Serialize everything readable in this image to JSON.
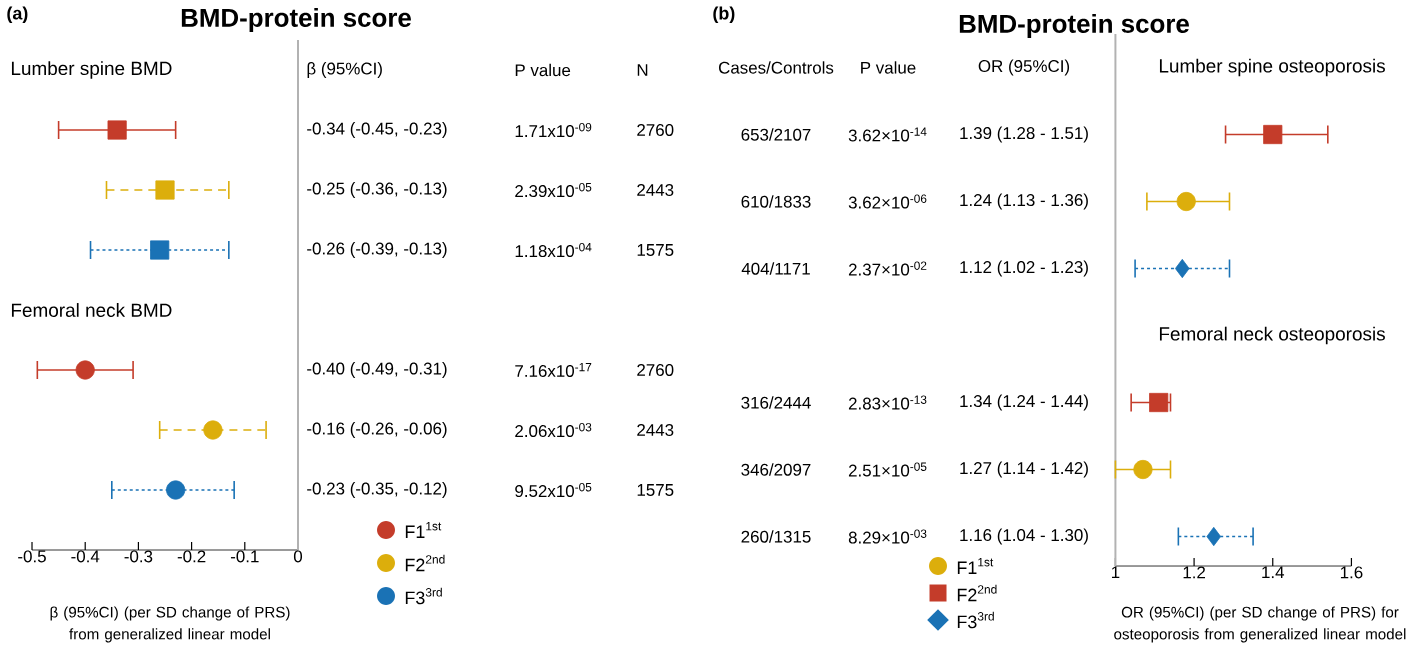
{
  "chart_data": [
    {
      "type": "scatter",
      "orientation": "horizontal",
      "title": "BMD-protein score",
      "xlabel": "β (95%CI) (per SD change of PRS) from generalized linear model",
      "categories": [
        "Lumber spine BMD",
        null,
        null,
        null,
        "Femoral neck BMD",
        null,
        null,
        null
      ],
      "xlim": [
        -0.5,
        0
      ],
      "xticks": [
        -0.5,
        -0.4,
        -0.3,
        -0.2,
        -0.1,
        0
      ],
      "legend": "bottom",
      "annotations": [
        "(a)",
        "β (95%CI)",
        "P value",
        "N",
        "-0.34 (-0.45, -0.23)",
        "1.71x10$^{-09}$",
        "2760",
        "-0.25 (-0.36, -0.13)",
        "2.39x10$^{-05}$",
        "2443",
        "-0.26 (-0.39, -0.13)",
        "1.18x10$^{-04}$",
        "1575",
        "-0.40 (-0.49, -0.31)",
        "7.16x10$^{-17}$",
        "2760",
        "-0.16 (-0.26, -0.06)",
        "2.06x10$^{-03}$",
        "2443",
        "-0.23 (-0.35, -0.12)",
        "9.52x10$^{-05}$",
        "1575"
      ],
      "series": [
        {
          "name": "F1$^{1st}$",
          "color": "#c43c2a",
          "marker": "circle",
          "line_style": "solid",
          "values": [
            null,
            null,
            null,
            null,
            null,
            -0.4,
            null,
            null
          ],
          "errors": [
            null,
            null,
            null,
            null,
            null,
            [
              -0.49,
              -0.31
            ],
            null,
            null
          ]
        },
        {
          "name": "F2$^{2nd}$",
          "color": "#dcae0c",
          "marker": "circle",
          "line_style": "dashed",
          "values": [
            null,
            null,
            null,
            null,
            null,
            null,
            -0.16,
            null
          ],
          "errors": [
            null,
            null,
            null,
            null,
            null,
            null,
            [
              -0.26,
              -0.06
            ],
            null
          ]
        },
        {
          "name": "F3$^{3rd}$",
          "color": "#1a72b5",
          "marker": "circle",
          "line_style": "dotted",
          "values": [
            null,
            null,
            null,
            null,
            null,
            null,
            null,
            -0.23
          ],
          "errors": [
            null,
            null,
            null,
            null,
            null,
            null,
            null,
            [
              -0.35,
              -0.12
            ]
          ]
        },
        {
          "color": "#c43c2a",
          "marker": "square",
          "line_style": "solid",
          "values": [
            null,
            -0.34,
            null,
            null,
            null,
            null,
            null,
            null
          ],
          "errors": [
            null,
            [
              -0.45,
              -0.23
            ],
            null,
            null,
            null,
            null,
            null,
            null
          ]
        },
        {
          "color": "#dcae0c",
          "marker": "square",
          "line_style": "dashed",
          "values": [
            null,
            null,
            -0.25,
            null,
            null,
            null,
            null,
            null
          ],
          "errors": [
            null,
            null,
            [
              -0.36,
              -0.13
            ],
            null,
            null,
            null,
            null,
            null
          ]
        },
        {
          "color": "#1a72b5",
          "marker": "square",
          "line_style": "dotted",
          "values": [
            null,
            null,
            null,
            -0.26,
            null,
            null,
            null,
            null
          ],
          "errors": [
            null,
            null,
            null,
            [
              -0.39,
              -0.13
            ],
            null,
            null,
            null,
            null
          ]
        }
      ]
    },
    {
      "type": "scatter",
      "orientation": "horizontal",
      "title": "BMD-protein score",
      "xlabel": "OR (95%CI) (per SD change of PRS) for osteoporosis from generalized linear model",
      "categories": [
        "Lumber spine osteoporosis",
        null,
        null,
        null,
        "Femoral neck osteoporosis",
        null,
        null,
        null
      ],
      "xlim": [
        1,
        1.6
      ],
      "xticks": [
        1,
        1.2,
        1.4,
        1.6
      ],
      "legend": "bottom",
      "annotations": [
        "(b)",
        "Cases/Controls",
        "P value",
        "OR (95%CI)",
        "653/2107",
        "3.62×10$^{-14}$",
        "1.39 (1.28 - 1.51)",
        "610/1833",
        "3.62×10$^{-06}$",
        "1.24 (1.13 - 1.36)",
        "404/1171",
        "2.37×10$^{-02}$",
        "1.12 (1.02 - 1.23)",
        "316/2444",
        "2.83×10$^{-13}$",
        "1.34 (1.24 - 1.44)",
        "346/2097",
        "2.51×10$^{-05}$",
        "1.27 (1.14 - 1.42)",
        "260/1315",
        "8.29×10$^{-03}$",
        "1.16 (1.04 - 1.30)"
      ],
      "series": [
        {
          "name": "F1$^{1st}$",
          "color": "#dcae0c",
          "marker": "circle",
          "line_style": "solid",
          "values": [
            null,
            null,
            1.18,
            null,
            null,
            null,
            1.07,
            null
          ],
          "errors": [
            null,
            null,
            [
              1.08,
              1.29
            ],
            null,
            null,
            null,
            [
              1.0,
              1.14
            ],
            null
          ]
        },
        {
          "name": "F2$^{2nd}$",
          "color": "#c43c2a",
          "marker": "square",
          "line_style": "solid",
          "values": [
            null,
            1.4,
            null,
            null,
            null,
            1.11,
            null,
            null
          ],
          "errors": [
            null,
            [
              1.28,
              1.54
            ],
            null,
            null,
            null,
            [
              1.04,
              1.14
            ],
            null,
            null
          ]
        },
        {
          "name": "F3$^{3rd}$",
          "color": "#1a72b5",
          "marker": "diamond",
          "line_style": "dotted",
          "values": [
            null,
            null,
            null,
            1.17,
            null,
            null,
            null,
            1.25
          ],
          "errors": [
            null,
            null,
            null,
            [
              1.05,
              1.29
            ],
            null,
            null,
            null,
            [
              1.16,
              1.35
            ]
          ]
        }
      ]
    }
  ]
}
